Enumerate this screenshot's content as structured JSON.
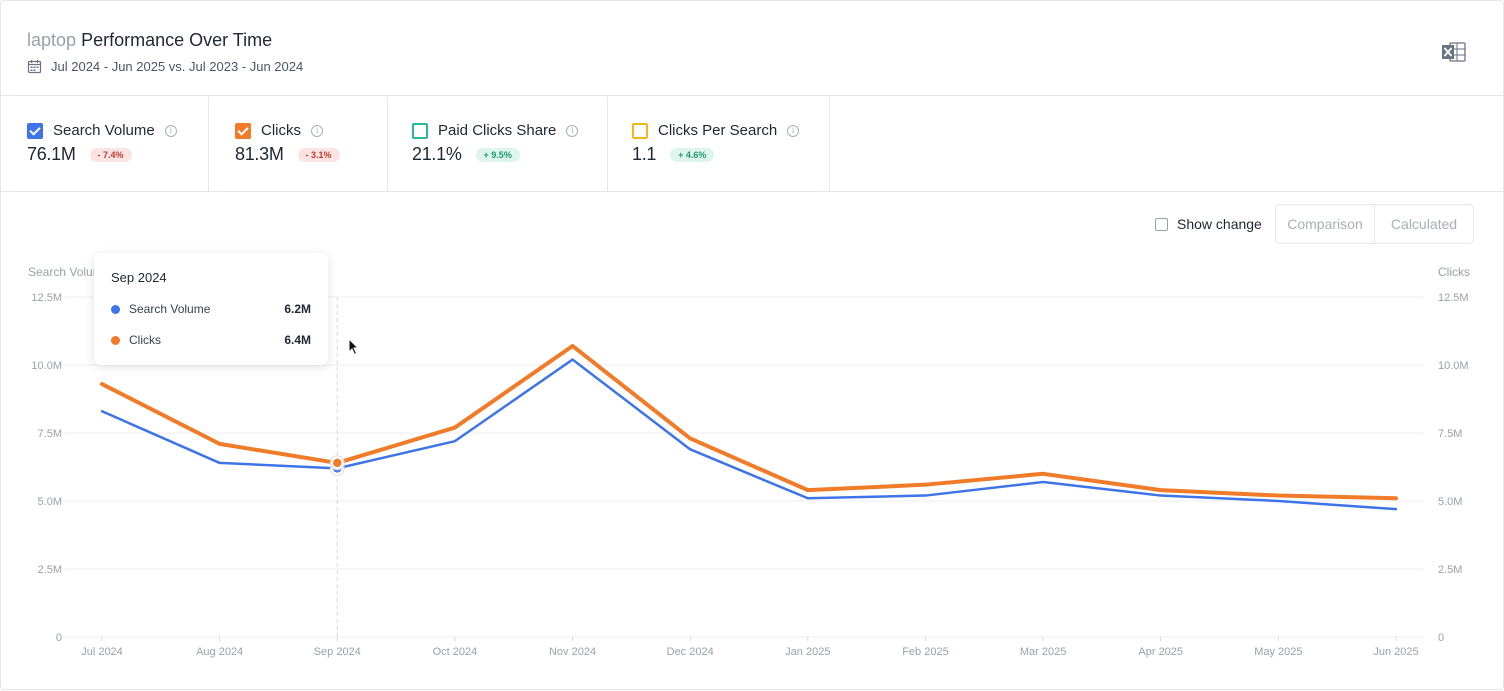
{
  "header": {
    "keyword": "laptop",
    "title": "Performance Over Time",
    "date_range": "Jul 2024 - Jun 2025 vs. Jul 2023 - Jun 2024",
    "calendar_icon": "calendar-icon",
    "export_icon": "excel-export-icon"
  },
  "metrics": [
    {
      "label": "Search Volume",
      "value": "76.1M",
      "change": "- 7.4%",
      "trend": "negative",
      "checked": true,
      "color": "#3e74e8"
    },
    {
      "label": "Clicks",
      "value": "81.3M",
      "change": "- 3.1%",
      "trend": "negative",
      "checked": true,
      "color": "#f07b28"
    },
    {
      "label": "Paid Clicks Share",
      "value": "21.1%",
      "change": "+ 9.5%",
      "trend": "positive",
      "checked": false,
      "color": "#2bb5a4"
    },
    {
      "label": "Clicks Per Search",
      "value": "1.1",
      "change": "+ 4.6%",
      "trend": "positive",
      "checked": false,
      "color": "#f2b619"
    }
  ],
  "controls": {
    "show_change_label": "Show change",
    "show_change_checked": false,
    "segments": [
      "Comparison",
      "Calculated"
    ]
  },
  "tooltip": {
    "title": "Sep 2024",
    "rows": [
      {
        "label": "Search Volume",
        "value": "6.2M",
        "color": "#3e74e8"
      },
      {
        "label": "Clicks",
        "value": "6.4M",
        "color": "#f07b28"
      }
    ]
  },
  "chart_data": {
    "type": "line",
    "ylabel_left": "Search Volume",
    "ylabel_right": "Clicks",
    "ylim": [
      0,
      12500000
    ],
    "y_ticks": [
      "0",
      "2.5M",
      "5.0M",
      "7.5M",
      "10.0M",
      "12.5M"
    ],
    "grid": true,
    "categories": [
      "Jul 2024",
      "Aug 2024",
      "Sep 2024",
      "Oct 2024",
      "Nov 2024",
      "Dec 2024",
      "Jan 2025",
      "Feb 2025",
      "Mar 2025",
      "Apr 2025",
      "May 2025",
      "Jun 2025"
    ],
    "series": [
      {
        "name": "Search Volume",
        "color": "#3e74e8",
        "values": [
          8300000,
          6400000,
          6200000,
          7200000,
          10200000,
          6900000,
          5100000,
          5200000,
          5700000,
          5200000,
          5000000,
          4700000
        ]
      },
      {
        "name": "Clicks",
        "color": "#f07b28",
        "values": [
          9300000,
          7100000,
          6400000,
          7700000,
          10700000,
          7300000,
          5400000,
          5600000,
          6000000,
          5400000,
          5200000,
          5100000
        ]
      }
    ],
    "highlighted_category": "Sep 2024"
  }
}
